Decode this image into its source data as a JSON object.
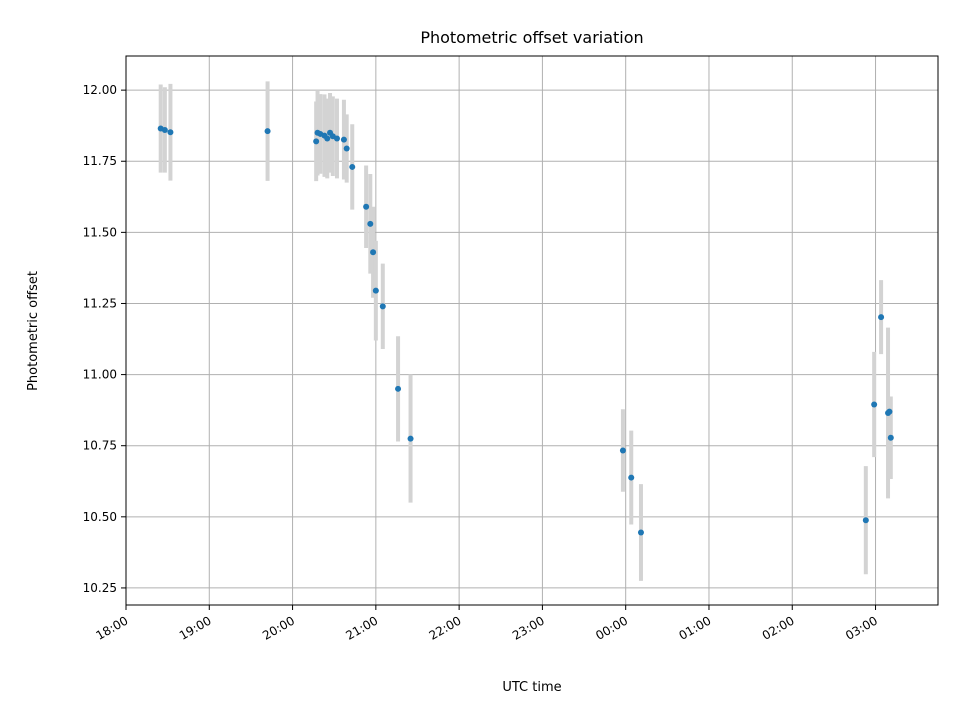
{
  "chart_data": {
    "type": "scatter",
    "title": "Photometric offset variation",
    "xlabel": "UTC time",
    "ylabel": "Photometric offset",
    "grid": true,
    "x_ticks": [
      "18:00",
      "19:00",
      "20:00",
      "21:00",
      "22:00",
      "23:00",
      "00:00",
      "01:00",
      "02:00",
      "03:00"
    ],
    "y_ticks": [
      "10.25",
      "10.50",
      "10.75",
      "11.00",
      "11.25",
      "11.50",
      "11.75",
      "12.00"
    ],
    "ylim": [
      10.19,
      12.12
    ],
    "xlim": [
      "18:00",
      "03:45"
    ],
    "errorbar_color": "#d3d3d3",
    "point_color": "#1f77b4",
    "series": [
      {
        "points": [
          {
            "t": "18:25",
            "y": 11.865,
            "err": 0.155
          },
          {
            "t": "18:28",
            "y": 11.86,
            "err": 0.15
          },
          {
            "t": "18:32",
            "y": 11.852,
            "err": 0.17
          },
          {
            "t": "19:42",
            "y": 11.856,
            "err": 0.175
          },
          {
            "t": "20:17",
            "y": 11.82,
            "err": 0.14
          },
          {
            "t": "20:18",
            "y": 11.85,
            "err": 0.15
          },
          {
            "t": "20:20",
            "y": 11.846,
            "err": 0.14
          },
          {
            "t": "20:23",
            "y": 11.84,
            "err": 0.145
          },
          {
            "t": "20:25",
            "y": 11.83,
            "err": 0.14
          },
          {
            "t": "20:27",
            "y": 11.85,
            "err": 0.14
          },
          {
            "t": "20:29",
            "y": 11.838,
            "err": 0.14
          },
          {
            "t": "20:32",
            "y": 11.83,
            "err": 0.14
          },
          {
            "t": "20:37",
            "y": 11.826,
            "err": 0.14
          },
          {
            "t": "20:39",
            "y": 11.795,
            "err": 0.12
          },
          {
            "t": "20:43",
            "y": 11.73,
            "err": 0.15
          },
          {
            "t": "20:53",
            "y": 11.59,
            "err": 0.145
          },
          {
            "t": "20:56",
            "y": 11.53,
            "err": 0.175
          },
          {
            "t": "20:58",
            "y": 11.43,
            "err": 0.16
          },
          {
            "t": "21:00",
            "y": 11.295,
            "err": 0.175
          },
          {
            "t": "21:05",
            "y": 11.24,
            "err": 0.15
          },
          {
            "t": "21:16",
            "y": 10.95,
            "err": 0.185
          },
          {
            "t": "21:25",
            "y": 10.775,
            "err": 0.225
          },
          {
            "t": "23:58",
            "y": 10.733,
            "err": 0.145
          },
          {
            "t": "00:04",
            "y": 10.638,
            "err": 0.165
          },
          {
            "t": "00:11",
            "y": 10.445,
            "err": 0.17
          },
          {
            "t": "02:53",
            "y": 10.488,
            "err": 0.19
          },
          {
            "t": "02:59",
            "y": 10.895,
            "err": 0.185
          },
          {
            "t": "03:04",
            "y": 11.202,
            "err": 0.13
          },
          {
            "t": "03:09",
            "y": 10.865,
            "err": 0.3
          },
          {
            "t": "03:10",
            "y": 10.87,
            "err": 0.05
          },
          {
            "t": "03:11",
            "y": 10.778,
            "err": 0.145
          }
        ]
      }
    ]
  }
}
